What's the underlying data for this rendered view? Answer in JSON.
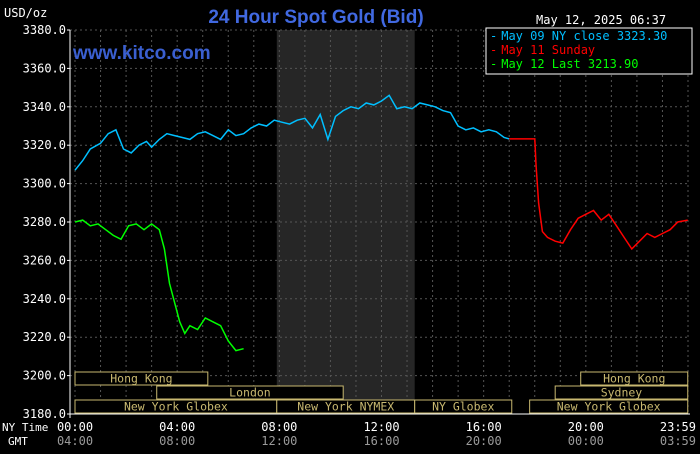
{
  "header": {
    "title": "24 Hour Spot Gold (Bid)",
    "timestamp": "May 12, 2025 06:37",
    "unit": "USD/oz",
    "brand": "www.kitco.com"
  },
  "colors": {
    "background": "#000000",
    "title": "#4169e1",
    "brand": "#3a5fd0",
    "prev_series": "#00bfff",
    "sunday_series": "#ff0000",
    "today_series": "#00ff00",
    "grid": "#555555",
    "axis_text": "#ffffff",
    "session_fill": "#000000",
    "session_border": "#c8b870",
    "session_text": "#c8b870",
    "nymex_shade": "#262626"
  },
  "legend": [
    {
      "marker": "-",
      "text": "May 09 NY close 3323.30",
      "color": "#00bfff"
    },
    {
      "marker": "-",
      "text": "May 11 Sunday",
      "color": "#ff0000"
    },
    {
      "marker": "-",
      "text": "May 12 Last 3213.90",
      "color": "#00ff00"
    }
  ],
  "axis": {
    "ny_label": "NY Time",
    "gmt_label": "GMT",
    "ny_ticks": [
      "00:00",
      "04:00",
      "08:00",
      "12:00",
      "16:00",
      "20:00",
      "23:59"
    ],
    "gmt_ticks": [
      "04:00",
      "08:00",
      "12:00",
      "16:00",
      "20:00",
      "00:00",
      "03:59"
    ]
  },
  "sessions": [
    {
      "label": "Hong Kong",
      "row": 0,
      "start_hr": 0,
      "end_hr": 5.2
    },
    {
      "label": "London",
      "row": 1,
      "start_hr": 3.2,
      "end_hr": 10.5
    },
    {
      "label": "New York Globex",
      "row": 2,
      "start_hr": 0,
      "end_hr": 7.9
    },
    {
      "label": "New York NYMEX",
      "row": 2,
      "start_hr": 7.9,
      "end_hr": 13.3
    },
    {
      "label": "NY Globex",
      "row": 2,
      "start_hr": 13.3,
      "end_hr": 17.1
    },
    {
      "label": "Hong Kong",
      "row": 0,
      "start_hr": 19.8,
      "end_hr": 23.99
    },
    {
      "label": "Sydney",
      "row": 1,
      "start_hr": 18.8,
      "end_hr": 23.99
    },
    {
      "label": "New York Globex",
      "row": 2,
      "start_hr": 17.8,
      "end_hr": 23.99
    }
  ],
  "chart_data": {
    "type": "line",
    "title": "24 Hour Spot Gold (Bid)",
    "ylabel": "USD/oz",
    "xlabel": "NY Time",
    "xlim": [
      0,
      24
    ],
    "ylim": [
      3180,
      3380
    ],
    "yticks": [
      3180,
      3200,
      3220,
      3240,
      3260,
      3280,
      3300,
      3320,
      3340,
      3360,
      3380
    ],
    "grid": true,
    "legend_position": "top-right",
    "nymex_shade_hours": [
      7.9,
      13.3
    ],
    "series": [
      {
        "name": "May 09 NY close 3323.30",
        "color": "#00bfff",
        "x": [
          0,
          0.3,
          0.6,
          1.0,
          1.3,
          1.6,
          1.9,
          2.2,
          2.5,
          2.8,
          3.0,
          3.3,
          3.6,
          3.9,
          4.2,
          4.5,
          4.8,
          5.1,
          5.4,
          5.7,
          6.0,
          6.3,
          6.6,
          6.9,
          7.2,
          7.5,
          7.8,
          8.1,
          8.4,
          8.7,
          9.0,
          9.3,
          9.6,
          9.9,
          10.2,
          10.5,
          10.8,
          11.1,
          11.4,
          11.7,
          12.0,
          12.3,
          12.6,
          12.9,
          13.2,
          13.5,
          13.8,
          14.1,
          14.4,
          14.7,
          15.0,
          15.3,
          15.6,
          15.9,
          16.2,
          16.5,
          16.8,
          17.0
        ],
        "values": [
          3307,
          3312,
          3318,
          3321,
          3326,
          3328,
          3318,
          3316,
          3320,
          3322,
          3319,
          3323,
          3326,
          3325,
          3324,
          3323,
          3326,
          3327,
          3325,
          3323,
          3328,
          3325,
          3326,
          3329,
          3331,
          3330,
          3333,
          3332,
          3331,
          3333,
          3334,
          3329,
          3336,
          3323,
          3335,
          3338,
          3340,
          3339,
          3342,
          3341,
          3343,
          3346,
          3339,
          3340,
          3339,
          3342,
          3341,
          3340,
          3338,
          3337,
          3330,
          3328,
          3329,
          3327,
          3328,
          3327,
          3324,
          3323.3
        ]
      },
      {
        "name": "May 11 Sunday",
        "color": "#ff0000",
        "x": [
          17.0,
          18.0,
          18.05,
          18.15,
          18.3,
          18.5,
          18.8,
          19.1,
          19.4,
          19.7,
          20.0,
          20.3,
          20.6,
          20.9,
          21.2,
          21.5,
          21.8,
          22.1,
          22.4,
          22.7,
          23.0,
          23.3,
          23.6,
          23.99
        ],
        "values": [
          3323.3,
          3323.3,
          3310,
          3290,
          3275,
          3272,
          3270,
          3269,
          3276,
          3282,
          3284,
          3286,
          3281,
          3284,
          3278,
          3272,
          3266,
          3270,
          3274,
          3272,
          3274,
          3276,
          3280,
          3281
        ]
      },
      {
        "name": "May 12 Last 3213.90",
        "color": "#00ff00",
        "x": [
          0,
          0.3,
          0.6,
          0.9,
          1.2,
          1.5,
          1.8,
          2.1,
          2.4,
          2.7,
          3.0,
          3.3,
          3.5,
          3.7,
          3.9,
          4.1,
          4.3,
          4.5,
          4.8,
          5.1,
          5.4,
          5.7,
          6.0,
          6.3,
          6.6
        ],
        "values": [
          3280,
          3281,
          3278,
          3279,
          3276,
          3273,
          3271,
          3278,
          3279,
          3276,
          3279,
          3276,
          3266,
          3248,
          3238,
          3228,
          3222,
          3226,
          3224,
          3230,
          3228,
          3226,
          3218,
          3213,
          3214
        ]
      }
    ]
  }
}
